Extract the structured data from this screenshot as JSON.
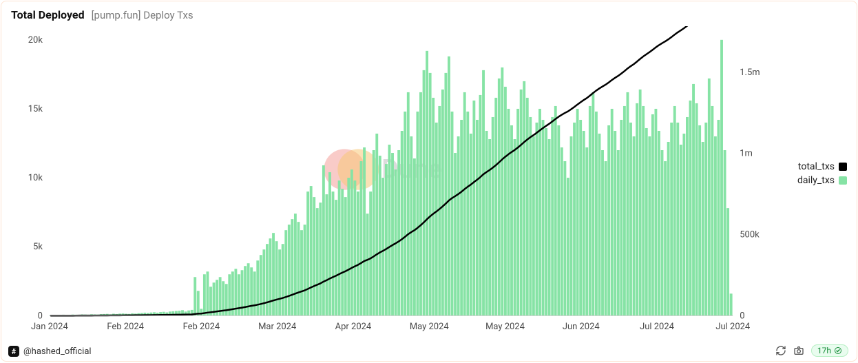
{
  "header": {
    "title": "Total Deployed",
    "subtitle": "[pump.fun] Deploy Txs"
  },
  "legend": {
    "total": {
      "label": "total_txs",
      "color": "#000000"
    },
    "daily": {
      "label": "daily_txs",
      "color": "#86e3a5"
    }
  },
  "footer": {
    "author": "@hashed_official",
    "freshness": "17h"
  },
  "watermark": {
    "text": "Dune",
    "circle1_color": "#f4a09a",
    "circle2_color": "#f8c978",
    "text_color": "#d9d9d9"
  },
  "chart": {
    "type": "bar+line",
    "background_color": "#ffffff",
    "card_border_color": "#fde2cf",
    "axis_text_color": "#4a4a4a",
    "axis_line_color": "#c4c4c4",
    "axis_fontsize": 13,
    "title_fontsize": 16,
    "line_width": 2.5,
    "bar_gap_ratio": 0.15,
    "y_left": {
      "min": 0,
      "max": 20000,
      "ticks": [
        0,
        5000,
        10000,
        15000,
        20000
      ],
      "tick_labels": [
        "0",
        "5k",
        "10k",
        "15k",
        "20k"
      ]
    },
    "y_right": {
      "min": 0,
      "max": 1700000,
      "ticks": [
        0,
        500000,
        1000000,
        1500000
      ],
      "tick_labels": [
        "0",
        "500k",
        "1m",
        "1.5m"
      ]
    },
    "x": {
      "tick_labels": [
        "Jan 2024",
        "Feb 2024",
        "Feb 2024",
        "Mar 2024",
        "Apr 2024",
        "May 2024",
        "May 2024",
        "Jun 2024",
        "Jul 2024",
        "Jul 2024"
      ]
    },
    "daily_txs": [
      50,
      40,
      60,
      55,
      70,
      60,
      50,
      80,
      70,
      60,
      90,
      80,
      70,
      100,
      90,
      80,
      110,
      120,
      130,
      100,
      140,
      120,
      150,
      160,
      140,
      130,
      170,
      150,
      180,
      200,
      220,
      200,
      230,
      250,
      220,
      260,
      280,
      240,
      300,
      320,
      340,
      360,
      400,
      300,
      380,
      420,
      2800,
      1800,
      500,
      3000,
      3200,
      2100,
      2400,
      2600,
      2800,
      2500,
      2300,
      3000,
      3200,
      3400,
      3000,
      3300,
      3600,
      3800,
      3500,
      3200,
      4000,
      4400,
      4800,
      5200,
      5600,
      6000,
      5400,
      4800,
      5200,
      6200,
      6600,
      7000,
      7400,
      6800,
      6200,
      6600,
      9000,
      9400,
      8600,
      7800,
      8200,
      10900,
      8800,
      10400,
      9000,
      8400,
      9800,
      9200,
      8600,
      10000,
      10600,
      9800,
      9000,
      11200,
      12200,
      7400,
      9000,
      12000,
      13200,
      11600,
      10000,
      11000,
      12400,
      11800,
      10600,
      12000,
      13400,
      14800,
      16200,
      13000,
      11400,
      14800,
      16200,
      17800,
      19200,
      17600,
      15800,
      14000,
      15200,
      16400,
      17600,
      18800,
      14800,
      11800,
      13000,
      14200,
      16200,
      14800,
      13200,
      15600,
      14200,
      16000,
      17800,
      13400,
      12800,
      14400,
      15800,
      17200,
      18000,
      16600,
      15000,
      13800,
      12800,
      15000,
      16400,
      17000,
      15800,
      14400,
      13000,
      14000,
      15000,
      14200,
      13600,
      12800,
      14400,
      15200,
      13800,
      12200,
      11200,
      10000,
      13000,
      14000,
      15000,
      14200,
      13400,
      12200,
      15200,
      16200,
      14800,
      13200,
      12000,
      11200,
      13800,
      15000,
      13400,
      12000,
      14200,
      15200,
      16200,
      14000,
      13000,
      15400,
      16400,
      15200,
      13600,
      13000,
      14600,
      15000,
      13400,
      12000,
      11200,
      12600,
      14000,
      15200,
      14000,
      12400,
      13200,
      14400,
      15600,
      16800,
      15400,
      13800,
      12600,
      14000,
      17200,
      15200,
      13000,
      14200,
      20500,
      12000,
      7800,
      1600
    ]
  }
}
